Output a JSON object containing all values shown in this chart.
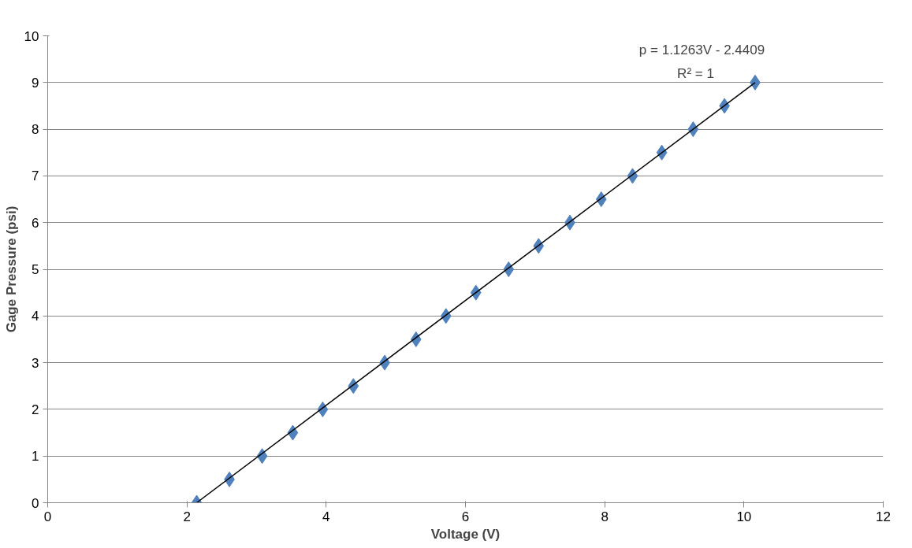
{
  "chart_data": {
    "type": "scatter",
    "xlabel": "Voltage (V)",
    "ylabel": "Gage Pressure (psi)",
    "xlim": [
      0,
      12
    ],
    "ylim": [
      0,
      10
    ],
    "xticks": [
      0,
      2,
      4,
      6,
      8,
      10,
      12
    ],
    "yticks": [
      0,
      1,
      2,
      3,
      4,
      5,
      6,
      7,
      8,
      9,
      10
    ],
    "grid": "y",
    "marker": "diamond",
    "series": [
      {
        "color": "#4f81bd",
        "x": [
          2.14,
          2.61,
          3.08,
          3.52,
          3.95,
          4.39,
          4.84,
          5.29,
          5.72,
          6.15,
          6.62,
          7.05,
          7.5,
          7.95,
          8.4,
          8.82,
          9.27,
          9.72,
          10.16
        ],
        "values": [
          0,
          0.5,
          1,
          1.5,
          2,
          2.5,
          3,
          3.5,
          4,
          4.5,
          5,
          5.5,
          6,
          6.5,
          7,
          7.5,
          8,
          8.5,
          9
        ]
      },
      {
        "type": "line",
        "marker": "none",
        "color": "#000000",
        "x": [
          2.14,
          10.16
        ],
        "values": [
          0,
          9
        ]
      }
    ],
    "annotations": [
      "p = 1.1263V - 2.4409",
      "R² = 1"
    ]
  }
}
